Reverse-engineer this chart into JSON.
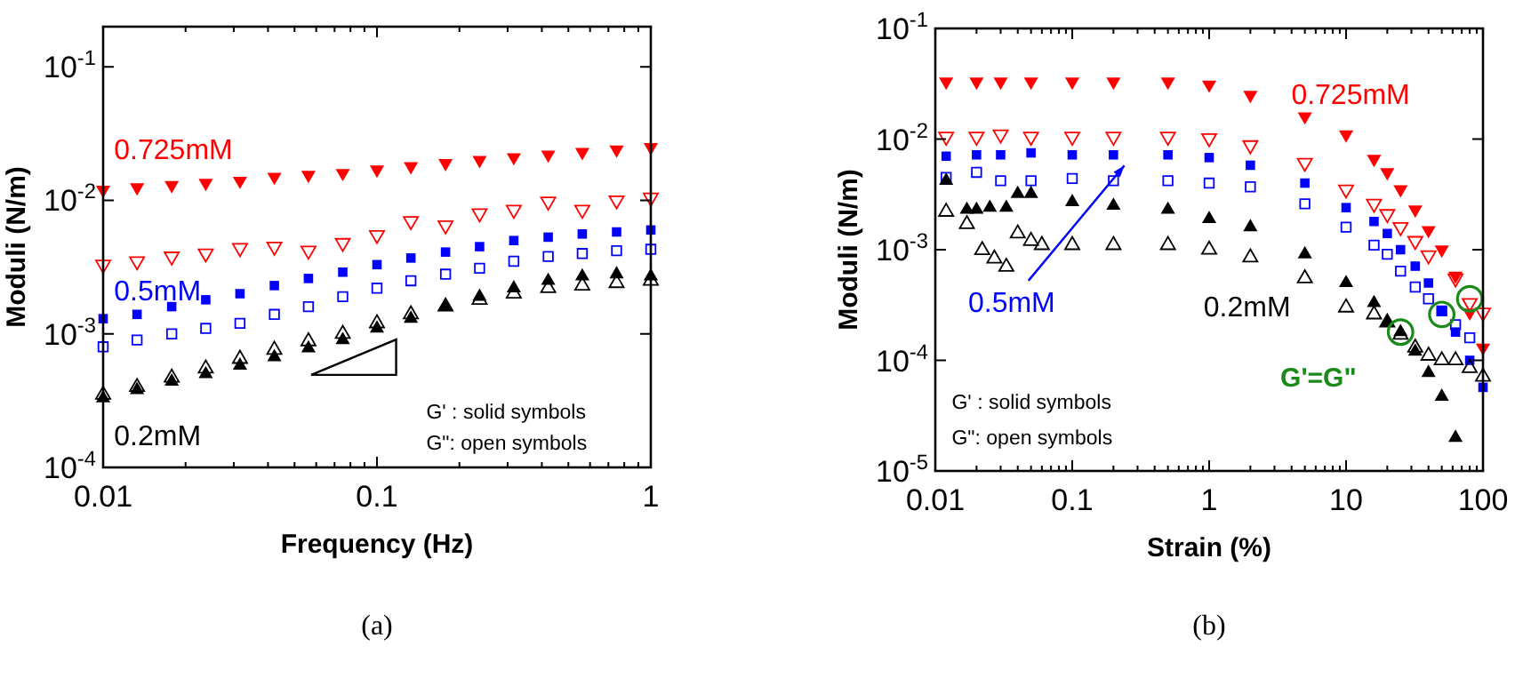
{
  "chart_data": [
    {
      "type": "scatter",
      "title": "(a)",
      "xlabel": "Frequency (Hz)",
      "ylabel": "Moduli (N/m)",
      "log": "xy",
      "grid": false,
      "xlim": [
        0.01,
        1
      ],
      "ylim": [
        0.0001,
        0.2
      ],
      "xticks": [
        0.01,
        {
          "value": 0.02,
          "label": null
        },
        {
          "value": 0.03,
          "label": null
        },
        {
          "value": 0.04,
          "label": null
        },
        {
          "value": 0.05,
          "label": null
        },
        {
          "value": 0.06,
          "label": null
        },
        {
          "value": 0.07,
          "label": null
        },
        {
          "value": 0.08,
          "label": null
        },
        {
          "value": 0.09,
          "label": null
        },
        0.1,
        {
          "value": 0.2,
          "label": null
        },
        {
          "value": 0.3,
          "label": null
        },
        {
          "value": 0.4,
          "label": null
        },
        {
          "value": 0.5,
          "label": null
        },
        {
          "value": 0.6,
          "label": null
        },
        {
          "value": 0.7,
          "label": null
        },
        {
          "value": 0.8,
          "label": null
        },
        {
          "value": 0.9,
          "label": null
        },
        1
      ],
      "yticks": [
        {
          "value": 0.0001,
          "label": "10$^{-4}$"
        },
        {
          "value": 0.001,
          "label": "10$^{-3}$"
        },
        {
          "value": 0.01,
          "label": "10$^{-2}$"
        },
        {
          "value": 0.1,
          "label": "10$^{-1}$"
        }
      ],
      "x": [
        0.01,
        0.0133,
        0.0178,
        0.0237,
        0.0316,
        0.0422,
        0.0562,
        0.075,
        0.1,
        0.133,
        0.178,
        0.237,
        0.316,
        0.422,
        0.562,
        0.75,
        1
      ],
      "annotations": [
        "G' : solid symbols",
        "G\": open symbols"
      ],
      "series": [
        {
          "name": "0.725mM",
          "color": "#ff0000",
          "marker": "triangle-down",
          "values": [
            0.012,
            0.0125,
            0.013,
            0.0135,
            0.014,
            0.015,
            0.0155,
            0.016,
            0.017,
            0.018,
            0.019,
            0.02,
            0.021,
            0.022,
            0.023,
            0.024,
            0.025
          ]
        },
        {
          "color": "#ff0000",
          "marker": "triangle-down-open",
          "values": [
            0.0033,
            0.0035,
            0.0038,
            0.004,
            0.0044,
            0.0045,
            0.0042,
            0.0048,
            0.0055,
            0.007,
            0.0065,
            0.008,
            0.0085,
            0.0098,
            0.0085,
            0.01,
            0.0105
          ]
        },
        {
          "name": "0.5mM",
          "color": "#0000ff",
          "marker": "square",
          "values": [
            0.0013,
            0.0014,
            0.0016,
            0.0018,
            0.002,
            0.0023,
            0.0026,
            0.0029,
            0.0033,
            0.0037,
            0.0041,
            0.0045,
            0.005,
            0.0053,
            0.0056,
            0.0058,
            0.006
          ]
        },
        {
          "color": "#0000ff",
          "marker": "square-open",
          "values": [
            0.0008,
            0.0009,
            0.001,
            0.0011,
            0.0012,
            0.0014,
            0.0016,
            0.0019,
            0.0022,
            0.0025,
            0.0028,
            0.0031,
            0.0035,
            0.0038,
            0.004,
            0.0042,
            0.0043
          ]
        },
        {
          "name": "0.2mM",
          "color": "#000000",
          "marker": "triangle",
          "values": [
            0.00033,
            0.00038,
            0.00044,
            0.0005,
            0.00058,
            0.00067,
            0.00078,
            0.0009,
            0.0011,
            0.0013,
            0.0016,
            0.0019,
            0.0022,
            0.0025,
            0.0027,
            0.0028,
            0.0027
          ]
        },
        {
          "color": "#000000",
          "marker": "triangle-open",
          "values": [
            0.00035,
            0.0004,
            0.00047,
            0.00055,
            0.00065,
            0.00076,
            0.00088,
            0.001,
            0.0012,
            0.0014,
            0.0016,
            0.0018,
            0.002,
            0.0022,
            0.0023,
            0.0024,
            0.0025
          ]
        }
      ]
    },
    {
      "type": "scatter",
      "title": "(b)",
      "xlabel": "Strain (%)",
      "ylabel": "Moduli (N/m)",
      "log": "xy",
      "grid": false,
      "xlim": [
        0.01,
        100
      ],
      "ylim": [
        1e-05,
        0.1
      ],
      "xticks": [
        0.01,
        {
          "value": 0.02,
          "label": null
        },
        {
          "value": 0.03,
          "label": null
        },
        {
          "value": 0.04,
          "label": null
        },
        {
          "value": 0.05,
          "label": null
        },
        {
          "value": 0.06,
          "label": null
        },
        {
          "value": 0.07,
          "label": null
        },
        {
          "value": 0.08,
          "label": null
        },
        {
          "value": 0.09,
          "label": null
        },
        0.1,
        {
          "value": 0.2,
          "label": null
        },
        {
          "value": 0.3,
          "label": null
        },
        {
          "value": 0.4,
          "label": null
        },
        {
          "value": 0.5,
          "label": null
        },
        {
          "value": 0.6,
          "label": null
        },
        {
          "value": 0.7,
          "label": null
        },
        {
          "value": 0.8,
          "label": null
        },
        {
          "value": 0.9,
          "label": null
        },
        1,
        {
          "value": 2,
          "label": null
        },
        {
          "value": 3,
          "label": null
        },
        {
          "value": 4,
          "label": null
        },
        {
          "value": 5,
          "label": null
        },
        {
          "value": 6,
          "label": null
        },
        {
          "value": 7,
          "label": null
        },
        {
          "value": 8,
          "label": null
        },
        {
          "value": 9,
          "label": null
        },
        10,
        {
          "value": 20,
          "label": null
        },
        {
          "value": 30,
          "label": null
        },
        {
          "value": 40,
          "label": null
        },
        {
          "value": 50,
          "label": null
        },
        {
          "value": 60,
          "label": null
        },
        {
          "value": 70,
          "label": null
        },
        {
          "value": 80,
          "label": null
        },
        {
          "value": 90,
          "label": null
        },
        100
      ],
      "yticks": [
        {
          "value": 1e-05,
          "label": "10$^{-5}$"
        },
        {
          "value": 0.0001,
          "label": "10$^{-4}$"
        },
        {
          "value": 0.001,
          "label": "10$^{-3}$"
        },
        {
          "value": 0.01,
          "label": "10$^{-2}$"
        },
        {
          "value": 0.1,
          "label": "10$^{-1}$"
        }
      ],
      "annotations": [
        "G' : solid symbols",
        "G\": open symbols"
      ],
      "series": [
        {
          "name": "0.725mM",
          "color": "#ff0000",
          "marker": "triangle-down",
          "x": [
            0.012,
            0.02,
            0.03,
            0.05,
            0.1,
            0.2,
            0.5,
            1,
            2,
            5,
            10,
            16,
            20,
            25,
            32,
            40,
            50,
            63,
            80,
            100
          ],
          "values": [
            0.033,
            0.033,
            0.033,
            0.033,
            0.033,
            0.033,
            0.033,
            0.031,
            0.025,
            0.016,
            0.011,
            0.0066,
            0.005,
            0.0035,
            0.0023,
            0.0015,
            0.001,
            0.00058,
            0.00027,
            0.00013
          ]
        },
        {
          "color": "#ff0000",
          "marker": "triangle-down-open",
          "x": [
            0.012,
            0.02,
            0.03,
            0.05,
            0.1,
            0.2,
            0.5,
            1,
            2,
            5,
            10,
            16,
            20,
            25,
            32,
            40,
            63,
            80,
            100
          ],
          "values": [
            0.0105,
            0.0105,
            0.011,
            0.0105,
            0.0105,
            0.0105,
            0.0105,
            0.0102,
            0.0088,
            0.0061,
            0.0035,
            0.0026,
            0.0021,
            0.0016,
            0.0012,
            0.00089,
            0.00055,
            0.00033,
            0.00027
          ]
        },
        {
          "name": "0.5mM",
          "color": "#0000ff",
          "marker": "square",
          "x": [
            0.012,
            0.02,
            0.03,
            0.05,
            0.1,
            0.2,
            0.5,
            1,
            2,
            5,
            10,
            16,
            20,
            25,
            32,
            40,
            50,
            63,
            80,
            100
          ],
          "values": [
            0.007,
            0.0072,
            0.0072,
            0.0075,
            0.0072,
            0.0072,
            0.0072,
            0.0068,
            0.0058,
            0.004,
            0.0024,
            0.0018,
            0.0014,
            0.001,
            0.00071,
            0.0005,
            0.00028,
            0.00018,
            0.0001,
            5.7e-05
          ]
        },
        {
          "color": "#0000ff",
          "marker": "square-open",
          "x": [
            0.012,
            0.02,
            0.03,
            0.05,
            0.1,
            0.2,
            0.5,
            1,
            2,
            5,
            10,
            16,
            20,
            25,
            32,
            40,
            50,
            63,
            80
          ],
          "values": [
            0.0045,
            0.005,
            0.0042,
            0.0042,
            0.0044,
            0.0042,
            0.0042,
            0.004,
            0.0037,
            0.0026,
            0.0016,
            0.0011,
            0.00091,
            0.00064,
            0.00046,
            0.00036,
            0.00028,
            0.00021,
            0.00016
          ]
        },
        {
          "name": "0.2mM",
          "color": "#000000",
          "marker": "triangle",
          "x": [
            0.012,
            0.017,
            0.02,
            0.025,
            0.033,
            0.04,
            0.05,
            0.1,
            0.2,
            0.5,
            1,
            2,
            5,
            10,
            16,
            20,
            25,
            32,
            40,
            50,
            63
          ],
          "values": [
            0.0042,
            0.0023,
            0.0023,
            0.0024,
            0.0024,
            0.0032,
            0.0032,
            0.0027,
            0.0025,
            0.0023,
            0.0019,
            0.0016,
            0.00091,
            0.0005,
            0.00033,
            0.00022,
            0.00018,
            0.00012,
            7.7e-05,
            4.7e-05,
            2e-05
          ]
        },
        {
          "color": "#000000",
          "marker": "triangle-open",
          "x": [
            0.012,
            0.017,
            0.022,
            0.027,
            0.033,
            0.04,
            0.05,
            0.06,
            0.1,
            0.2,
            0.5,
            1,
            2,
            5,
            10,
            16,
            20,
            25,
            32,
            40,
            50,
            63,
            80,
            100
          ],
          "values": [
            0.0022,
            0.0017,
            0.00099,
            0.00083,
            0.0007,
            0.0014,
            0.0012,
            0.0011,
            0.0011,
            0.0011,
            0.0011,
            0.001,
            0.00085,
            0.00055,
            0.0003,
            0.00026,
            0.00022,
            0.00017,
            0.00013,
            0.00011,
            0.0001,
            0.0001,
            8.5e-05,
            7.1e-05
          ]
        },
        {
          "name": "G'=G\"",
          "type": "bubble",
          "color": "#1a8a1a",
          "marker": "circle-open",
          "x": [
            25,
            50,
            80
          ],
          "values": [
            0.00018,
            0.00026,
            0.00036
          ],
          "sizes": [
            1,
            1,
            1
          ]
        }
      ]
    }
  ]
}
